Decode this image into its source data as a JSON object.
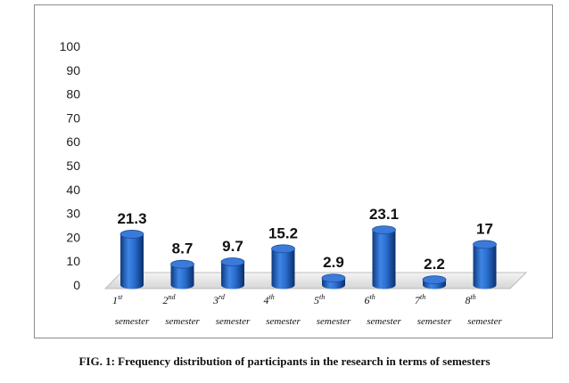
{
  "caption": "FIG. 1: Frequency distribution of participants in the research in terms of semesters",
  "chart_data": {
    "type": "bar",
    "style": "3d-cylinder",
    "title": "",
    "xlabel": "",
    "ylabel": "",
    "ylim": [
      0,
      100
    ],
    "yticks": [
      0,
      10,
      20,
      30,
      40,
      50,
      60,
      70,
      80,
      90,
      100
    ],
    "grid": false,
    "legend": "none",
    "bar_color": "#1f5fbf",
    "categories": [
      {
        "ord": "1",
        "sup": "st",
        "word": "semester"
      },
      {
        "ord": "2",
        "sup": "nd",
        "word": "semester"
      },
      {
        "ord": "3",
        "sup": "rd",
        "word": "semester"
      },
      {
        "ord": "4",
        "sup": "th",
        "word": "semester"
      },
      {
        "ord": "5",
        "sup": "th",
        "word": "semester"
      },
      {
        "ord": "6",
        "sup": "th",
        "word": "semester"
      },
      {
        "ord": "7",
        "sup": "th",
        "word": "semester"
      },
      {
        "ord": "8",
        "sup": "th",
        "word": "semester"
      }
    ],
    "values": [
      21.3,
      8.7,
      9.7,
      15.2,
      2.9,
      23.1,
      2.2,
      17
    ],
    "data_labels": [
      "21.3",
      "8.7",
      "9.7",
      "15.2",
      "2.9",
      "23.1",
      "2.2",
      "17"
    ]
  }
}
